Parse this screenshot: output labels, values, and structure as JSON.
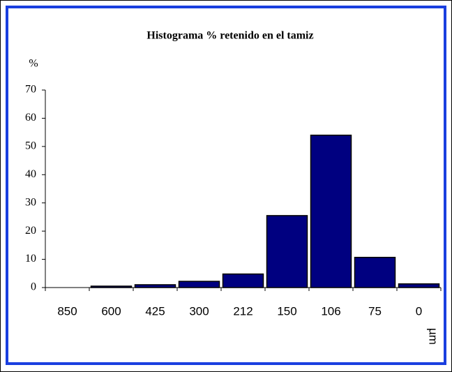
{
  "chart_data": {
    "type": "bar",
    "title": "Histograma % retenido en el tamiz",
    "y_label": "%",
    "x_label": "µm",
    "categories": [
      "850",
      "600",
      "425",
      "300",
      "212",
      "150",
      "106",
      "75",
      "0"
    ],
    "values": [
      0,
      0.5,
      1,
      2.2,
      4.8,
      25.5,
      54,
      10.7,
      1.3
    ],
    "color": "#000080",
    "ylim": [
      0,
      70
    ],
    "yticks": [
      0,
      10,
      20,
      30,
      40,
      50,
      60,
      70
    ]
  }
}
